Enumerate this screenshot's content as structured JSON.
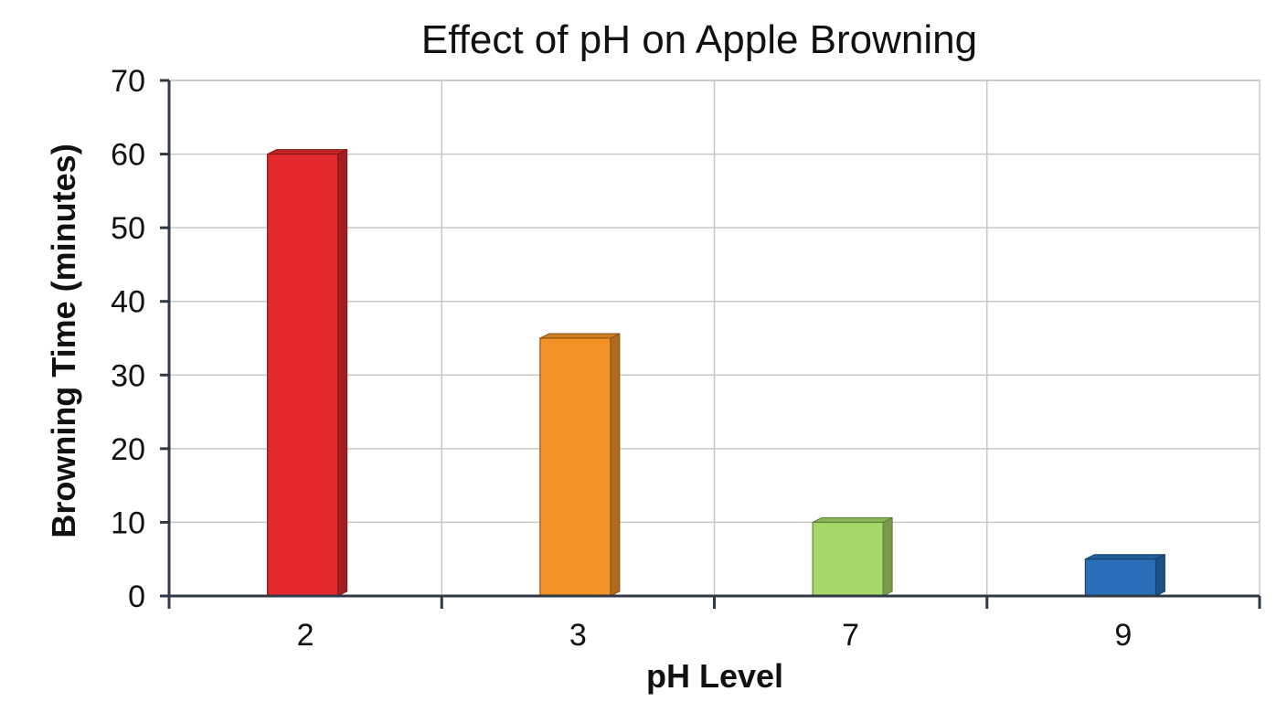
{
  "chart_data": {
    "type": "bar",
    "title": "Effect of pH on Apple Browning",
    "xlabel": "pH Level",
    "ylabel": "Browning Time (minutes)",
    "categories": [
      "2",
      "3",
      "7",
      "9"
    ],
    "values": [
      60,
      35,
      10,
      5
    ],
    "colors": [
      "#e3292c",
      "#f39325",
      "#a6d869",
      "#2a6fba"
    ],
    "ylim": [
      0,
      70
    ],
    "yticks": [
      0,
      10,
      20,
      30,
      40,
      50,
      60,
      70
    ],
    "grid": true,
    "legend": "none",
    "style": "3d-bars"
  }
}
